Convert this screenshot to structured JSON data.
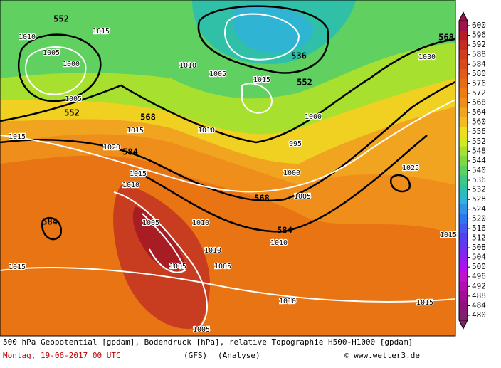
{
  "map": {
    "geopotential_labels": [
      "552",
      "552",
      "536",
      "552",
      "568",
      "584",
      "568",
      "584",
      "584",
      "568"
    ],
    "pressure_labels": [
      "1010",
      "1005",
      "1000",
      "1005",
      "1015",
      "1015",
      "1010",
      "1015",
      "1005",
      "1010",
      "1015",
      "1010",
      "1005",
      "1000",
      "995",
      "1000",
      "1005",
      "1030",
      "1025",
      "1015",
      "1015",
      "1005",
      "1010",
      "1010",
      "1005",
      "1015",
      "1010",
      "1015",
      "1005",
      "1020",
      "1010"
    ]
  },
  "colorbar": {
    "ticks": [
      600,
      596,
      592,
      588,
      584,
      580,
      576,
      572,
      568,
      564,
      560,
      556,
      552,
      548,
      544,
      540,
      536,
      532,
      528,
      524,
      520,
      516,
      512,
      508,
      504,
      500,
      496,
      492,
      488,
      484,
      480
    ],
    "colors": [
      "#a0104a",
      "#b81c24",
      "#c82c20",
      "#d03c20",
      "#d84c1c",
      "#e05c18",
      "#e86c14",
      "#ee7c14",
      "#f08e1c",
      "#f0a420",
      "#f0bc20",
      "#f0dc20",
      "#d4e820",
      "#a8e030",
      "#80d844",
      "#5cd064",
      "#40c884",
      "#30c0a8",
      "#30b4d4",
      "#3094e4",
      "#3074f0",
      "#4458f0",
      "#5440f0",
      "#7030f0",
      "#9020f0",
      "#b010f0",
      "#c010d0",
      "#b010b0",
      "#a01090",
      "#901080",
      "#802070"
    ]
  },
  "footer": {
    "description": "500 hPa Geopotential [gpdam], Bodendruck [hPa], relative Topographie H500-H1000 [gpdam]",
    "date": "Montag, 19-06-2017  00 UTC",
    "model": "(GFS)",
    "run": "(Analyse)",
    "credit": "© www.wetter3.de"
  }
}
